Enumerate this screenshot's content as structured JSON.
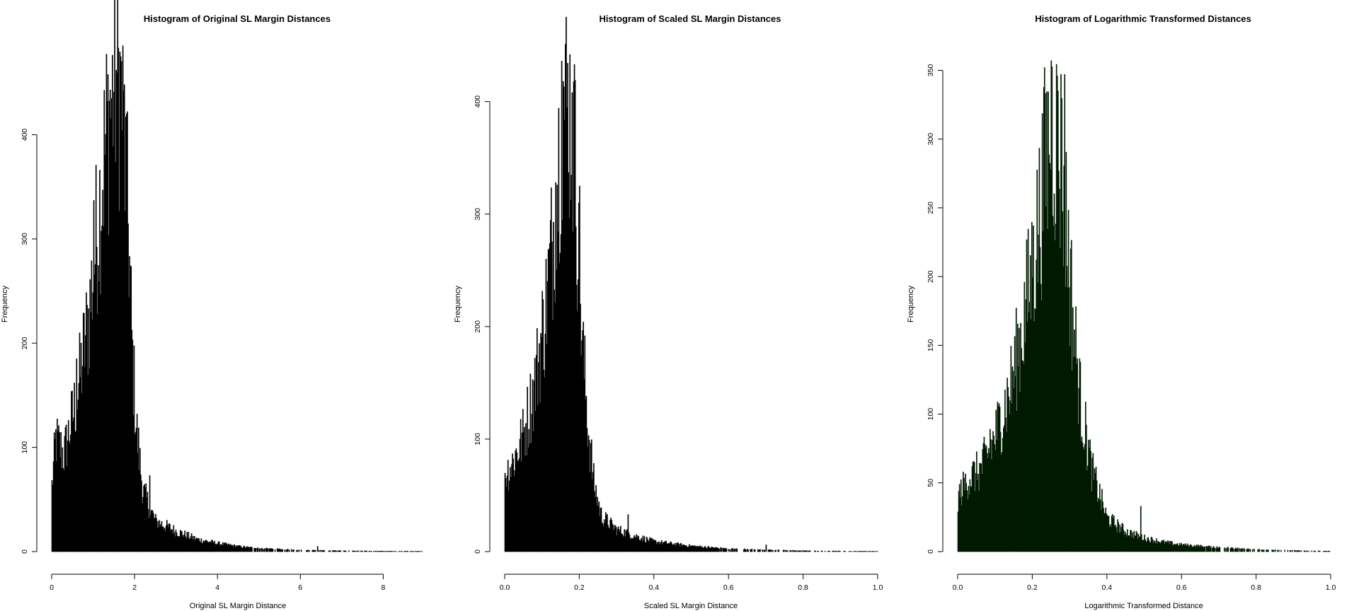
{
  "chart_data": [
    {
      "type": "bar",
      "title": "Histogram of Original SL Margin Distances",
      "xlabel": "Original SL Margin Distance",
      "ylabel": "Frequency",
      "xlim": [
        0,
        9
      ],
      "ylim": [
        0,
        475
      ],
      "x_ticks": [
        0,
        2,
        4,
        6,
        8
      ],
      "y_ticks": [
        0,
        100,
        200,
        300,
        400
      ],
      "bar_color": "#000000",
      "bin_width": 0.018,
      "profile": [
        [
          0,
          60
        ],
        [
          0.1,
          110
        ],
        [
          0.3,
          95
        ],
        [
          0.6,
          150
        ],
        [
          0.9,
          230
        ],
        [
          1.2,
          360
        ],
        [
          1.35,
          420
        ],
        [
          1.5,
          455
        ],
        [
          1.6,
          470
        ],
        [
          1.7,
          440
        ],
        [
          1.85,
          320
        ],
        [
          1.95,
          190
        ],
        [
          2.05,
          120
        ],
        [
          2.2,
          60
        ],
        [
          2.5,
          30
        ],
        [
          3.0,
          20
        ],
        [
          3.5,
          12
        ],
        [
          4.0,
          8
        ],
        [
          4.5,
          5
        ],
        [
          5.0,
          3
        ],
        [
          6.0,
          1.5
        ],
        [
          7.0,
          0.8
        ],
        [
          8.0,
          0.4
        ],
        [
          9.0,
          0.2
        ]
      ],
      "spikes": [
        [
          1.65,
          475
        ],
        [
          1.75,
          448
        ],
        [
          1.55,
          462
        ],
        [
          1.8,
          420
        ],
        [
          1.4,
          443
        ],
        [
          1.0,
          337
        ],
        [
          0.6,
          185
        ],
        [
          2.35,
          73
        ],
        [
          6.4,
          5
        ]
      ]
    },
    {
      "type": "bar",
      "title": "Histogram of Scaled SL Margin Distances",
      "xlabel": "Scaled SL Margin Distance",
      "ylabel": "Frequency",
      "xlim": [
        0,
        1
      ],
      "ylim": [
        0,
        440
      ],
      "x_ticks": [
        "0.0",
        "0.2",
        "0.4",
        "0.6",
        "0.8",
        "1.0"
      ],
      "y_ticks": [
        0,
        100,
        200,
        300,
        400
      ],
      "bar_color": "#000000",
      "bin_width": 0.002,
      "profile": [
        [
          0,
          70
        ],
        [
          0.02,
          80
        ],
        [
          0.05,
          105
        ],
        [
          0.08,
          150
        ],
        [
          0.11,
          220
        ],
        [
          0.13,
          290
        ],
        [
          0.15,
          380
        ],
        [
          0.16,
          410
        ],
        [
          0.175,
          400
        ],
        [
          0.19,
          350
        ],
        [
          0.2,
          250
        ],
        [
          0.21,
          180
        ],
        [
          0.225,
          110
        ],
        [
          0.24,
          60
        ],
        [
          0.26,
          32
        ],
        [
          0.3,
          20
        ],
        [
          0.35,
          14
        ],
        [
          0.4,
          9
        ],
        [
          0.5,
          5
        ],
        [
          0.6,
          2.5
        ],
        [
          0.7,
          1.5
        ],
        [
          0.8,
          0.8
        ],
        [
          0.9,
          0.4
        ],
        [
          1.0,
          0.2
        ]
      ],
      "spikes": [
        [
          0.152,
          436
        ],
        [
          0.156,
          418
        ],
        [
          0.188,
          419
        ],
        [
          0.18,
          408
        ],
        [
          0.135,
          328
        ],
        [
          0.2,
          325
        ],
        [
          0.33,
          33
        ],
        [
          0.7,
          6
        ]
      ]
    },
    {
      "type": "bar",
      "title": "Histogram of Logarithmic Transformed Distances",
      "xlabel": "Logarithmic Transformed Distance",
      "ylabel": "Frequency",
      "xlim": [
        0,
        1
      ],
      "ylim": [
        0,
        360
      ],
      "x_ticks": [
        "0.0",
        "0.2",
        "0.4",
        "0.6",
        "0.8",
        "1.0"
      ],
      "y_ticks": [
        0,
        50,
        100,
        150,
        200,
        250,
        300,
        350
      ],
      "bar_color": "#001a00",
      "bin_width": 0.002,
      "profile": [
        [
          0,
          40
        ],
        [
          0.03,
          55
        ],
        [
          0.06,
          60
        ],
        [
          0.1,
          85
        ],
        [
          0.14,
          120
        ],
        [
          0.17,
          160
        ],
        [
          0.2,
          210
        ],
        [
          0.23,
          270
        ],
        [
          0.25,
          320
        ],
        [
          0.27,
          300
        ],
        [
          0.29,
          250
        ],
        [
          0.31,
          170
        ],
        [
          0.33,
          110
        ],
        [
          0.36,
          60
        ],
        [
          0.4,
          25
        ],
        [
          0.45,
          15
        ],
        [
          0.5,
          10
        ],
        [
          0.55,
          7
        ],
        [
          0.6,
          5
        ],
        [
          0.7,
          3
        ],
        [
          0.8,
          1.5
        ],
        [
          0.9,
          0.8
        ],
        [
          1.0,
          0.3
        ]
      ],
      "spikes": [
        [
          0.25,
          357
        ],
        [
          0.232,
          352
        ],
        [
          0.275,
          347
        ],
        [
          0.265,
          346
        ],
        [
          0.287,
          347
        ],
        [
          0.202,
          237
        ],
        [
          0.086,
          89
        ],
        [
          0.49,
          33
        ]
      ]
    }
  ]
}
